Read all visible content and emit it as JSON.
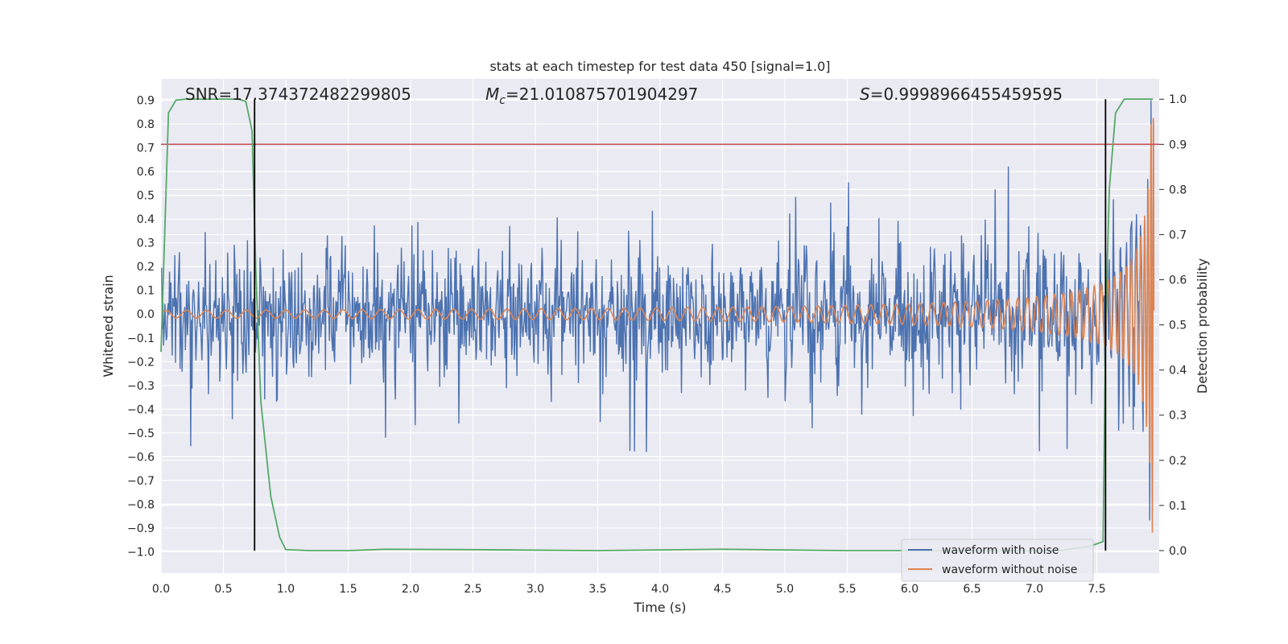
{
  "chart_data": {
    "type": "line",
    "title": "stats at each timestep for test data 450 [signal=1.0]",
    "xlabel": "Time (s)",
    "ylabel": "Whitened strain",
    "y2label": "Detection probability",
    "xlim": [
      0.0,
      8.0
    ],
    "ylim": [
      -1.09,
      0.99
    ],
    "y2lim": [
      -0.05,
      1.045
    ],
    "x_ticks": [
      "0.0",
      "0.5",
      "1.0",
      "1.5",
      "2.0",
      "2.5",
      "3.0",
      "3.5",
      "4.0",
      "4.5",
      "5.0",
      "5.5",
      "6.0",
      "6.5",
      "7.0",
      "7.5"
    ],
    "x_tick_values": [
      0.0,
      0.5,
      1.0,
      1.5,
      2.0,
      2.5,
      3.0,
      3.5,
      4.0,
      4.5,
      5.0,
      5.5,
      6.0,
      6.5,
      7.0,
      7.5
    ],
    "y_ticks": [
      "0.9",
      "0.8",
      "0.7",
      "0.6",
      "0.5",
      "0.4",
      "0.3",
      "0.2",
      "0.1",
      "0.0",
      "−0.1",
      "−0.2",
      "−0.3",
      "−0.4",
      "−0.5",
      "−0.6",
      "−0.7",
      "−0.8",
      "−0.9",
      "−1.0"
    ],
    "y_tick_values": [
      0.9,
      0.8,
      0.7,
      0.6,
      0.5,
      0.4,
      0.3,
      0.2,
      0.1,
      0.0,
      -0.1,
      -0.2,
      -0.3,
      -0.4,
      -0.5,
      -0.6,
      -0.7,
      -0.8,
      -0.9,
      -1.0
    ],
    "y2_ticks": [
      "1.0",
      "0.9",
      "0.8",
      "0.7",
      "0.6",
      "0.5",
      "0.4",
      "0.3",
      "0.2",
      "0.1",
      "0.0"
    ],
    "y2_tick_values": [
      1.0,
      0.9,
      0.8,
      0.7,
      0.6,
      0.5,
      0.4,
      0.3,
      0.2,
      0.1,
      0.0
    ],
    "stats": {
      "snr": "SNR=17.374372482299805",
      "mc_symbol": "M",
      "mc_sub": "c",
      "mc_value": "=21.010875701904297",
      "s_symbol": "S",
      "s_value": "=0.9998966455459595"
    },
    "threshold": {
      "value": 0.9,
      "axis": "y2",
      "color": "#c44e52"
    },
    "vertical_lines": [
      0.75,
      7.57
    ],
    "series": [
      {
        "name": "waveform with noise",
        "color": "#4c72b0",
        "axis": "y",
        "description": "whitened strain with noise, amplitude ~±0.3, spikes to ±0.5"
      },
      {
        "name": "waveform without noise",
        "color": "#dd8452",
        "axis": "y",
        "description": "chirp signal growing in amplitude and frequency up to merger near 7.95 s"
      },
      {
        "name": "detection probability",
        "color": "#55a868",
        "axis": "y2",
        "x": [
          0.0,
          0.06,
          0.12,
          0.2,
          0.35,
          0.5,
          0.62,
          0.68,
          0.73,
          0.76,
          0.8,
          0.88,
          0.95,
          1.0,
          1.2,
          1.5,
          1.8,
          2.5,
          3.5,
          4.5,
          5.5,
          6.5,
          7.2,
          7.45,
          7.55,
          7.57,
          7.6,
          7.65,
          7.72,
          7.8,
          7.9,
          7.95
        ],
        "values": [
          0.44,
          0.97,
          0.998,
          1.0,
          1.0,
          1.0,
          1.0,
          0.995,
          0.93,
          0.62,
          0.33,
          0.12,
          0.03,
          0.002,
          0.0,
          0.0,
          0.003,
          0.002,
          0.0,
          0.003,
          0.0,
          0.0,
          0.0,
          0.01,
          0.02,
          0.5,
          0.8,
          0.97,
          1.0,
          1.0,
          1.0,
          1.0
        ]
      }
    ],
    "legend_labels": [
      "waveform with noise",
      "waveform without noise"
    ]
  }
}
